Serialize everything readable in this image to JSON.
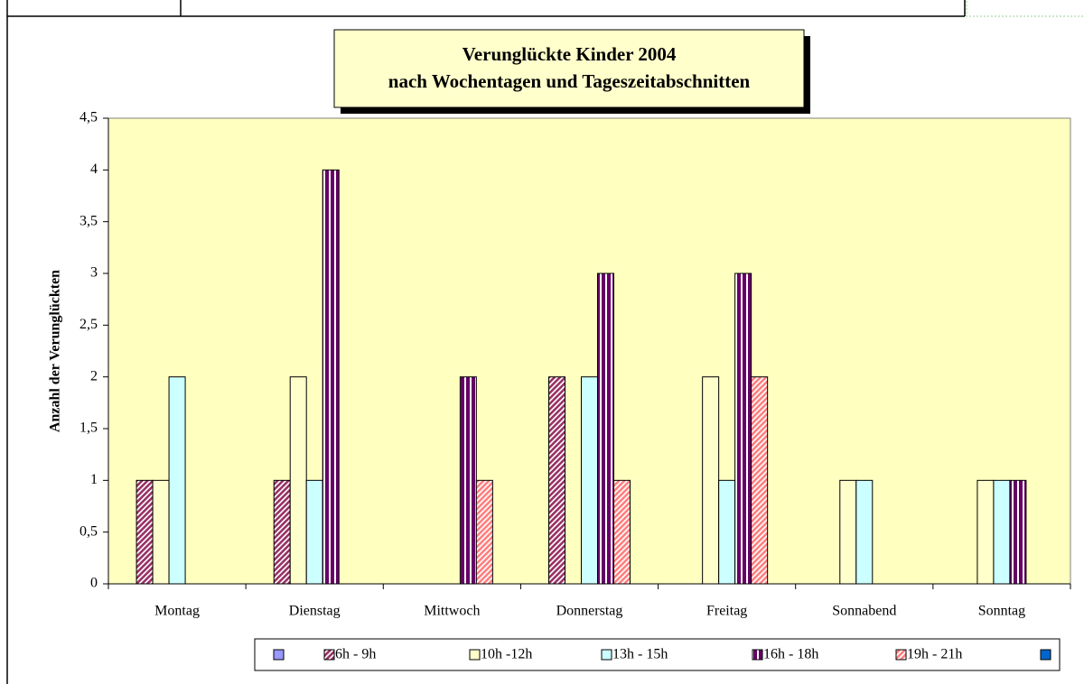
{
  "chart_data": {
    "type": "bar",
    "title_lines": [
      "Verunglückte Kinder 2004",
      "nach Wochentagen und Tageszeitabschnitten"
    ],
    "y_label": "Anzahl der Verunglückten",
    "categories": [
      "Montag",
      "Dienstag",
      "Mittwoch",
      "Donnerstag",
      "Freitag",
      "Sonnabend",
      "Sonntag"
    ],
    "series": [
      {
        "name": null,
        "color": "#9999ff",
        "pattern": "solid",
        "values": [
          null,
          null,
          null,
          null,
          null,
          null,
          null
        ]
      },
      {
        "name": "6h - 9h",
        "color": "#993366",
        "pattern": "diagonal",
        "values": [
          1,
          1,
          null,
          2,
          null,
          null,
          null
        ]
      },
      {
        "name": "10h -12h",
        "color": "#ffffcc",
        "pattern": "solid",
        "values": [
          1,
          2,
          null,
          null,
          2,
          1,
          1
        ]
      },
      {
        "name": "13h - 15h",
        "color": "#ccffff",
        "pattern": "solid",
        "values": [
          2,
          1,
          null,
          2,
          1,
          1,
          1
        ]
      },
      {
        "name": "16h - 18h",
        "color": "#660066",
        "pattern": "vertical",
        "values": [
          null,
          4,
          2,
          3,
          3,
          null,
          1
        ]
      },
      {
        "name": "19h - 21h",
        "color": "#ff8080",
        "pattern": "diagonal",
        "values": [
          null,
          null,
          1,
          1,
          2,
          null,
          null
        ]
      },
      {
        "name": null,
        "color": "#0066cc",
        "pattern": "solid",
        "values": [
          null,
          null,
          null,
          null,
          null,
          null,
          null
        ]
      }
    ],
    "ylim": [
      0,
      4.5
    ],
    "yticks": [
      0,
      {
        "value": 0.5,
        "label": "0,5"
      },
      1,
      {
        "value": 1.5,
        "label": "1,5"
      },
      2,
      {
        "value": 2.5,
        "label": "2,5"
      },
      3,
      {
        "value": 3.5,
        "label": "3,5"
      },
      4,
      {
        "value": 4.5,
        "label": "4,5"
      }
    ],
    "plot_background": "#ffffc0",
    "grid": false,
    "legend": "bottom"
  }
}
